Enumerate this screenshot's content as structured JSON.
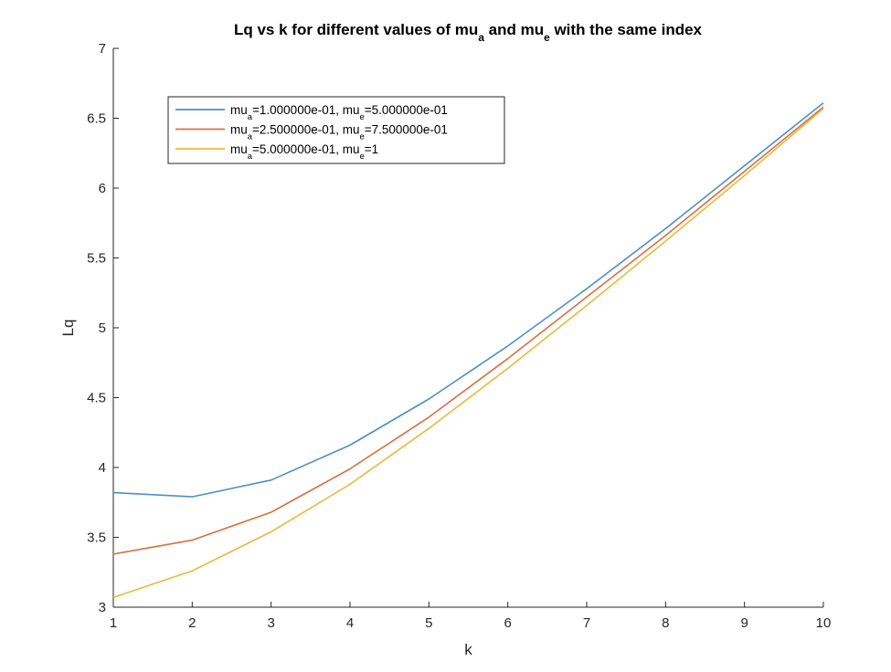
{
  "chart_data": {
    "type": "line",
    "title": {
      "parts": [
        {
          "t": "Lq vs k for different values of mu"
        },
        {
          "t": "a",
          "sub": true
        },
        {
          "t": " and mu"
        },
        {
          "t": "e",
          "sub": true
        },
        {
          "t": " with the same index"
        }
      ]
    },
    "xlabel": "k",
    "ylabel": "Lq",
    "xlim": [
      1,
      10
    ],
    "ylim": [
      3,
      7
    ],
    "xticks": [
      "1",
      "2",
      "3",
      "4",
      "5",
      "6",
      "7",
      "8",
      "9",
      "10"
    ],
    "yticks": [
      "3",
      "3.5",
      "4",
      "4.5",
      "5",
      "5.5",
      "6",
      "6.5",
      "7"
    ],
    "grid": false,
    "legend_position": "top-left",
    "x": [
      1,
      2,
      3,
      4,
      5,
      6,
      7,
      8,
      9,
      10
    ],
    "series": [
      {
        "color": "#4a90c4",
        "label": [
          {
            "t": "mu"
          },
          {
            "t": "a",
            "sub": true
          },
          {
            "t": "=1.000000e-01,  mu"
          },
          {
            "t": "e",
            "sub": true
          },
          {
            "t": "=5.000000e-01"
          }
        ],
        "values": [
          3.82,
          3.79,
          3.91,
          4.16,
          4.49,
          4.87,
          5.28,
          5.71,
          6.16,
          6.61
        ]
      },
      {
        "color": "#d96f3f",
        "label": [
          {
            "t": "mu"
          },
          {
            "t": "a",
            "sub": true
          },
          {
            "t": "=2.500000e-01,  mu"
          },
          {
            "t": "e",
            "sub": true
          },
          {
            "t": "=7.500000e-01"
          }
        ],
        "values": [
          3.38,
          3.48,
          3.68,
          3.99,
          4.36,
          4.78,
          5.22,
          5.66,
          6.12,
          6.58
        ]
      },
      {
        "color": "#ebb83a",
        "label": [
          {
            "t": "mu"
          },
          {
            "t": "a",
            "sub": true
          },
          {
            "t": "=5.000000e-01,  mu"
          },
          {
            "t": "e",
            "sub": true
          },
          {
            "t": "=1"
          }
        ],
        "values": [
          3.07,
          3.26,
          3.54,
          3.88,
          4.28,
          4.71,
          5.16,
          5.62,
          6.09,
          6.57
        ]
      }
    ]
  }
}
